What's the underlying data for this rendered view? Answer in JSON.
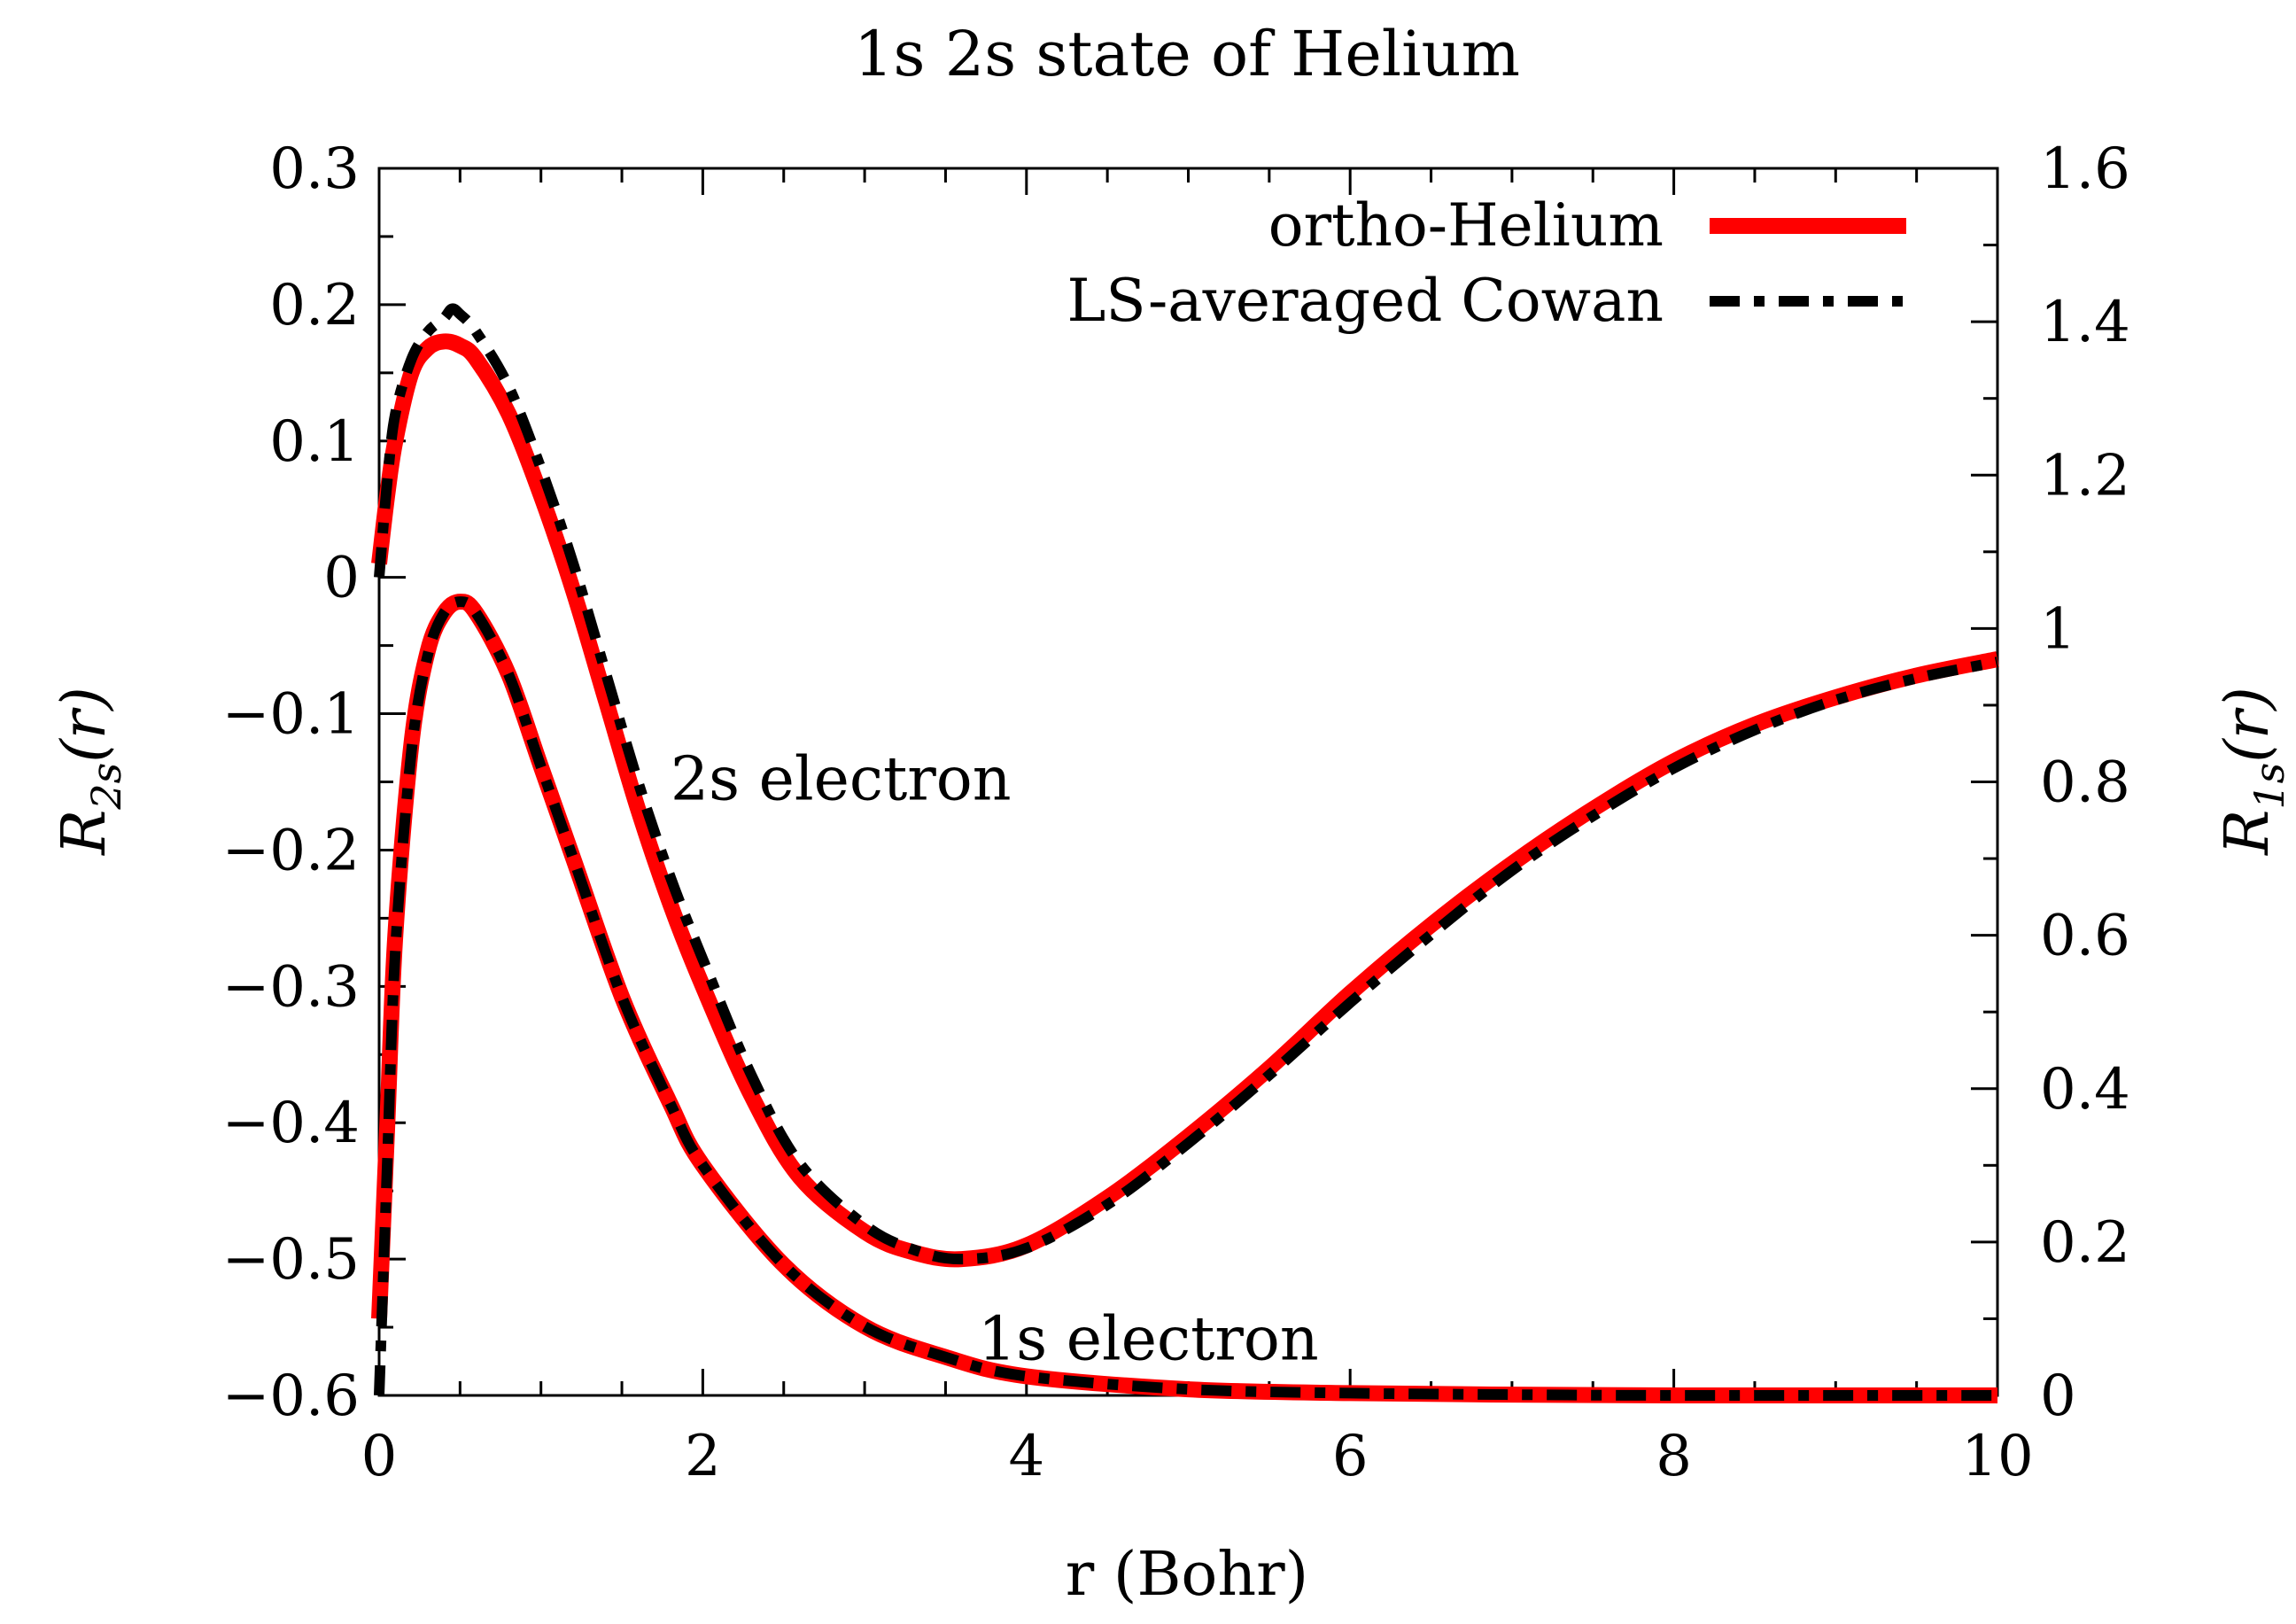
{
  "chart_data": {
    "type": "line",
    "title": "1s 2s state of Helium",
    "xlabel": "r (Bohr)",
    "ylabel_left": {
      "base": "R",
      "sub": "2s",
      "arg": "(r)"
    },
    "ylabel_right": {
      "base": "R",
      "sub": "1s",
      "arg": "(r)"
    },
    "xlim": [
      0,
      10
    ],
    "ylim_left": [
      -0.6,
      0.3
    ],
    "ylim_right": [
      0,
      1.6
    ],
    "x_ticks": [
      "0",
      "2",
      "4",
      "6",
      "8",
      "10"
    ],
    "y_left_ticks": [
      "0.3",
      "0.2",
      "0.1",
      "0",
      "−0.1",
      "−0.2",
      "−0.3",
      "−0.4",
      "−0.5",
      "−0.6"
    ],
    "y_right_ticks": [
      "1.6",
      "1.4",
      "1.2",
      "1",
      "0.8",
      "0.6",
      "0.4",
      "0.2",
      "0"
    ],
    "legend_position": "top-right",
    "legend": [
      {
        "label": "ortho-Helium",
        "color": "#ff0000",
        "style": "solid"
      },
      {
        "label": "LS-averaged Cowan",
        "color": "#000000",
        "style": "dash-dot"
      }
    ],
    "annotations": [
      {
        "text": "2s electron",
        "x": 1.8,
        "y": -0.15,
        "axis": "left"
      },
      {
        "text": "1s electron",
        "x": 3.7,
        "y": 0.07,
        "axis": "right"
      }
    ],
    "series": [
      {
        "name": "ortho-Helium 2s",
        "axis": "left",
        "color": "#ff0000",
        "style": "solid",
        "x": [
          0,
          0.05,
          0.1,
          0.2,
          0.3,
          0.4,
          0.5,
          0.6,
          0.8,
          1.0,
          1.2,
          1.4,
          1.6,
          1.8,
          2.0,
          2.3,
          2.6,
          3.0,
          3.3,
          3.6,
          4.0,
          4.5,
          5.0,
          5.5,
          6.0,
          6.5,
          7.0,
          7.5,
          8.0,
          8.5,
          9.0,
          9.5,
          10.0
        ],
        "y": [
          0.01,
          0.06,
          0.1,
          0.15,
          0.168,
          0.173,
          0.17,
          0.16,
          0.12,
          0.06,
          -0.01,
          -0.09,
          -0.17,
          -0.24,
          -0.3,
          -0.38,
          -0.44,
          -0.48,
          -0.495,
          -0.5,
          -0.49,
          -0.455,
          -0.41,
          -0.36,
          -0.305,
          -0.255,
          -0.21,
          -0.17,
          -0.135,
          -0.108,
          -0.088,
          -0.072,
          -0.06
        ]
      },
      {
        "name": "LS-averaged Cowan 2s",
        "axis": "left",
        "color": "#000000",
        "style": "dash-dot",
        "x": [
          0,
          0.05,
          0.1,
          0.2,
          0.3,
          0.4,
          0.45,
          0.5,
          0.6,
          0.8,
          1.0,
          1.2,
          1.4,
          1.6,
          1.8,
          2.0,
          2.3,
          2.6,
          3.0,
          3.3,
          3.6,
          4.0,
          4.5,
          5.0,
          5.5,
          6.0,
          6.5,
          7.0,
          7.5,
          8.0,
          8.5,
          9.0,
          9.5,
          10.0
        ],
        "y": [
          0.0,
          0.07,
          0.12,
          0.16,
          0.18,
          0.19,
          0.197,
          0.193,
          0.18,
          0.14,
          0.08,
          0.01,
          -0.07,
          -0.15,
          -0.22,
          -0.28,
          -0.365,
          -0.43,
          -0.475,
          -0.493,
          -0.5,
          -0.492,
          -0.46,
          -0.415,
          -0.365,
          -0.312,
          -0.262,
          -0.215,
          -0.175,
          -0.14,
          -0.112,
          -0.09,
          -0.074,
          -0.062
        ]
      },
      {
        "name": "ortho-Helium 1s",
        "axis": "right",
        "color": "#ff0000",
        "style": "solid",
        "x": [
          0,
          0.05,
          0.1,
          0.2,
          0.3,
          0.4,
          0.5,
          0.6,
          0.8,
          1.0,
          1.2,
          1.5,
          1.8,
          2.0,
          2.5,
          3.0,
          3.5,
          4.0,
          5.0,
          6.0,
          7.0,
          8.0,
          9.0,
          10.0
        ],
        "y": [
          0.1,
          0.35,
          0.6,
          0.85,
          0.97,
          1.02,
          1.035,
          1.02,
          0.94,
          0.82,
          0.7,
          0.52,
          0.38,
          0.3,
          0.17,
          0.09,
          0.05,
          0.025,
          0.008,
          0.003,
          0.001,
          0.0,
          0.0,
          0.0
        ]
      },
      {
        "name": "LS-averaged Cowan 1s",
        "axis": "right",
        "color": "#000000",
        "style": "dash-dot",
        "x": [
          0,
          0.05,
          0.1,
          0.2,
          0.3,
          0.4,
          0.5,
          0.6,
          0.8,
          1.0,
          1.2,
          1.5,
          1.8,
          2.0,
          2.5,
          3.0,
          3.5,
          4.0,
          5.0,
          6.0,
          7.0,
          8.0,
          9.0,
          10.0
        ],
        "y": [
          0.0,
          0.3,
          0.58,
          0.84,
          0.965,
          1.02,
          1.035,
          1.02,
          0.94,
          0.82,
          0.7,
          0.52,
          0.38,
          0.3,
          0.17,
          0.09,
          0.05,
          0.025,
          0.008,
          0.003,
          0.001,
          0.0,
          0.0,
          0.0
        ]
      }
    ]
  }
}
